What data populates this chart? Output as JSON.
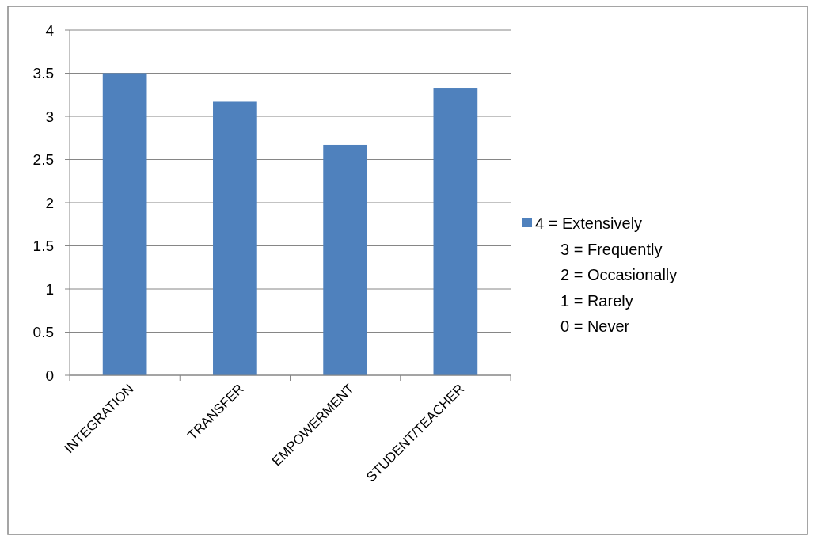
{
  "chart_data": {
    "type": "bar",
    "categories": [
      "INTEGRATION",
      "TRANSFER",
      "EMPOWERMENT",
      "STUDENT/TEACHER"
    ],
    "series": [
      {
        "name": "4 = Extensively",
        "color": "#4f81bd",
        "values": [
          3.5,
          3.17,
          2.67,
          3.33
        ]
      }
    ],
    "ylim": [
      0,
      4
    ],
    "yticks": [
      0,
      0.5,
      1,
      1.5,
      2,
      2.5,
      3,
      3.5,
      4
    ],
    "grid": "y",
    "legend": "right",
    "annotations": [
      "3 = Frequently",
      "2 = Occasionally",
      "1 = Rarely",
      "0 = Never"
    ]
  }
}
